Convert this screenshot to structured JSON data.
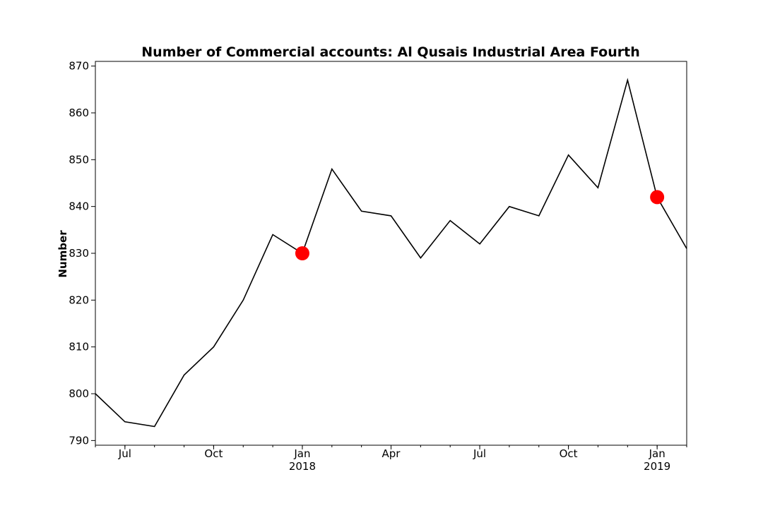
{
  "chart_data": {
    "type": "line",
    "title": "Number of Commercial accounts: Al Qusais Industrial Area Fourth",
    "xlabel": "",
    "ylabel": "Number",
    "ylim": [
      789,
      871
    ],
    "xlim": [
      "2017-06",
      "2019-02"
    ],
    "yticks": [
      790,
      800,
      810,
      820,
      830,
      840,
      850,
      860,
      870
    ],
    "xticks": [
      {
        "x": "2017-07",
        "label": "Jul",
        "sublabel": ""
      },
      {
        "x": "2017-10",
        "label": "Oct",
        "sublabel": ""
      },
      {
        "x": "2018-01",
        "label": "Jan",
        "sublabel": "2018"
      },
      {
        "x": "2018-04",
        "label": "Apr",
        "sublabel": ""
      },
      {
        "x": "2018-07",
        "label": "Jul",
        "sublabel": ""
      },
      {
        "x": "2018-10",
        "label": "Oct",
        "sublabel": ""
      },
      {
        "x": "2019-01",
        "label": "Jan",
        "sublabel": "2019"
      }
    ],
    "grid": false,
    "line_color": "#000000",
    "highlight_color": "#ff0000",
    "series": [
      {
        "x": [
          "2017-06",
          "2017-07",
          "2017-08",
          "2017-09",
          "2017-10",
          "2017-11",
          "2017-12",
          "2018-01",
          "2018-02",
          "2018-03",
          "2018-04",
          "2018-05",
          "2018-06",
          "2018-07",
          "2018-08",
          "2018-09",
          "2018-10",
          "2018-11",
          "2018-12",
          "2019-01",
          "2019-02"
        ],
        "values": [
          800,
          794,
          793,
          804,
          810,
          820,
          834,
          830,
          848,
          839,
          838,
          829,
          837,
          832,
          840,
          838,
          851,
          844,
          867,
          842,
          831
        ]
      }
    ],
    "highlights": [
      {
        "x": "2018-01",
        "value": 830
      },
      {
        "x": "2019-01",
        "value": 842
      }
    ]
  }
}
